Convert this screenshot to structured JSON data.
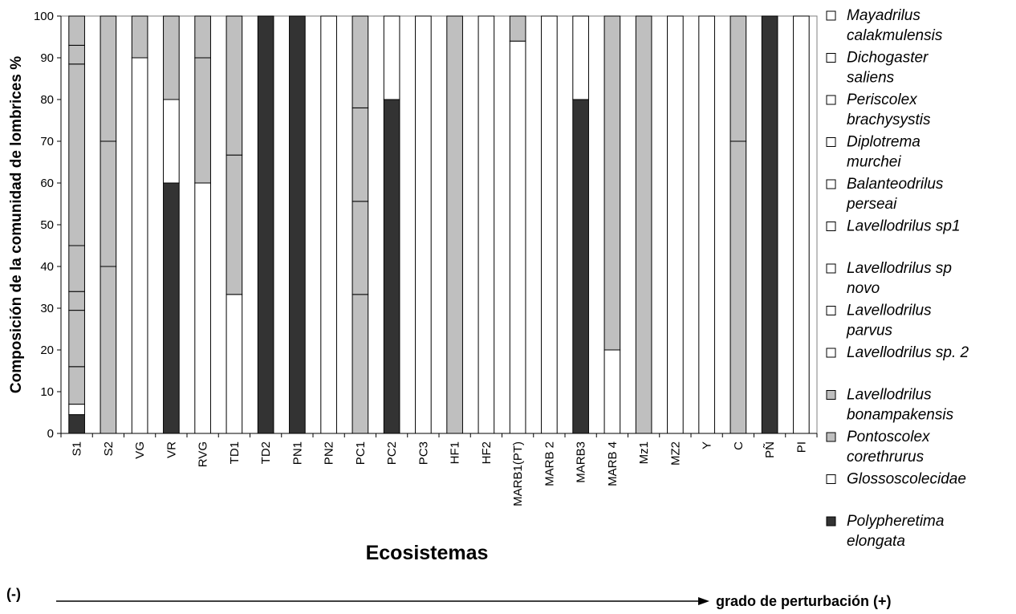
{
  "chart_data": {
    "type": "bar",
    "stacked": true,
    "ylabel": "Composición de la comunidad de lombrices %",
    "xlabel": "Ecosistemas",
    "ylim": [
      0,
      100
    ],
    "yticks": [
      0,
      10,
      20,
      30,
      40,
      50,
      60,
      70,
      80,
      90,
      100
    ],
    "legend_position": "right",
    "categories": [
      "S1",
      "S2",
      "VG",
      "VR",
      "RVG",
      "TD1",
      "TD2",
      "PN1",
      "PN2",
      "PC1",
      "PC2",
      "PC3",
      "HF1",
      "HF2",
      "MARB1(PT)",
      "MARB 2",
      "MARB3",
      "MARB 4",
      "Mz1",
      "MZ2",
      "Y",
      "C",
      "PÑ",
      "PI"
    ],
    "series": [
      {
        "name": "Polypheretima elongata",
        "color": "#333333",
        "values": [
          4.5,
          0,
          0,
          60,
          0,
          0,
          100,
          100,
          0,
          0,
          80,
          0,
          0,
          0,
          0,
          0,
          80,
          0,
          0,
          0,
          0,
          0,
          100,
          0
        ]
      },
      {
        "name": "Glossoscolecidae",
        "color": "#ffffff",
        "values": [
          2.5,
          0,
          90,
          20,
          60,
          33.3,
          0,
          0,
          100,
          0,
          20,
          100,
          0,
          100,
          94,
          100,
          20,
          20,
          0,
          100,
          100,
          0,
          0,
          100
        ]
      },
      {
        "name": "Pontoscolex corethrurus",
        "color": "#bfbfbf",
        "values": [
          9,
          40,
          10,
          20,
          30,
          33.4,
          0,
          0,
          0,
          33.3,
          0,
          0,
          100,
          0,
          6,
          0,
          0,
          80,
          100,
          0,
          0,
          70,
          0,
          0
        ]
      },
      {
        "name": "Lavellodrilus bonampakensis",
        "color": "#bfbfbf",
        "values": [
          13.5,
          30,
          0,
          0,
          10,
          33.3,
          0,
          0,
          0,
          22.3,
          0,
          0,
          0,
          0,
          0,
          0,
          0,
          0,
          0,
          0,
          0,
          30,
          0,
          0
        ]
      },
      {
        "name": "Lavellodrilus sp. 2",
        "color": "#bfbfbf",
        "values": [
          4.5,
          30,
          0,
          0,
          0,
          0,
          0,
          0,
          0,
          22.4,
          0,
          0,
          0,
          0,
          0,
          0,
          0,
          0,
          0,
          0,
          0,
          0,
          0,
          0
        ]
      },
      {
        "name": "Lavellodrilus parvus",
        "color": "#bfbfbf",
        "values": [
          11,
          0,
          0,
          0,
          0,
          0,
          0,
          0,
          0,
          22,
          0,
          0,
          0,
          0,
          0,
          0,
          0,
          0,
          0,
          0,
          0,
          0,
          0,
          0
        ]
      },
      {
        "name": "Lavellodrilus sp novo",
        "color": "#bfbfbf",
        "values": [
          43.5,
          0,
          0,
          0,
          0,
          0,
          0,
          0,
          0,
          0,
          0,
          0,
          0,
          0,
          0,
          0,
          0,
          0,
          0,
          0,
          0,
          0,
          0,
          0
        ]
      },
      {
        "name": "Lavellodrilus sp1",
        "color": "#bfbfbf",
        "values": [
          4.5,
          0,
          0,
          0,
          0,
          0,
          0,
          0,
          0,
          0,
          0,
          0,
          0,
          0,
          0,
          0,
          0,
          0,
          0,
          0,
          0,
          0,
          0,
          0
        ]
      },
      {
        "name": "Balanteodrilus perseai",
        "color": "#bfbfbf",
        "values": [
          7,
          0,
          0,
          0,
          0,
          0,
          0,
          0,
          0,
          0,
          0,
          0,
          0,
          0,
          0,
          0,
          0,
          0,
          0,
          0,
          0,
          0,
          0,
          0
        ]
      },
      {
        "name": "Diplotrema murchei",
        "color": "#ffffff",
        "values": [
          0,
          0,
          0,
          0,
          0,
          0,
          0,
          0,
          0,
          0,
          0,
          0,
          0,
          0,
          0,
          0,
          0,
          0,
          0,
          0,
          0,
          0,
          0,
          0
        ]
      },
      {
        "name": "Periscolex brachysystis",
        "color": "#ffffff",
        "values": [
          0,
          0,
          0,
          0,
          0,
          0,
          0,
          0,
          0,
          0,
          0,
          0,
          0,
          0,
          0,
          0,
          0,
          0,
          0,
          0,
          0,
          0,
          0,
          0
        ]
      },
      {
        "name": "Dichogaster saliens",
        "color": "#ffffff",
        "values": [
          0,
          0,
          0,
          0,
          0,
          0,
          0,
          0,
          0,
          0,
          0,
          0,
          0,
          0,
          0,
          0,
          0,
          0,
          0,
          0,
          0,
          0,
          0,
          0
        ]
      },
      {
        "name": "Mayadrilus calakmulensis",
        "color": "#ffffff",
        "values": [
          0,
          0,
          0,
          0,
          0,
          0,
          0,
          0,
          0,
          0,
          0,
          0,
          0,
          0,
          0,
          0,
          0,
          0,
          0,
          0,
          0,
          0,
          0,
          0
        ]
      }
    ],
    "legend": [
      {
        "line1": "Mayadrilus",
        "line2": "calakmulensis",
        "color": "#ffffff"
      },
      {
        "line1": "Dichogaster",
        "line2": "saliens",
        "color": "#ffffff"
      },
      {
        "line1": "Periscolex",
        "line2": "brachysystis",
        "color": "#ffffff"
      },
      {
        "line1": "Diplotrema",
        "line2": "murchei",
        "color": "#ffffff"
      },
      {
        "line1": "Balanteodrilus",
        "line2": "perseai",
        "color": "#ffffff"
      },
      {
        "line1": "Lavellodrilus sp1",
        "line2": "",
        "color": "#ffffff"
      },
      {
        "line1": "Lavellodrilus sp",
        "line2": "novo",
        "color": "#ffffff"
      },
      {
        "line1": "Lavellodrilus",
        "line2": "parvus",
        "color": "#ffffff"
      },
      {
        "line1": "Lavellodrilus sp. 2",
        "line2": "",
        "color": "#ffffff"
      },
      {
        "line1": "Lavellodrilus",
        "line2": "bonampakensis",
        "color": "#bfbfbf"
      },
      {
        "line1": "Pontoscolex",
        "line2": "corethrurus",
        "color": "#bfbfbf"
      },
      {
        "line1": "Glossoscolecidae",
        "line2": "",
        "color": "#ffffff"
      },
      {
        "line1": "Polypheretima",
        "line2": "elongata",
        "color": "#333333"
      }
    ]
  },
  "arrow": {
    "left_label": "(-)",
    "right_label": "grado de perturbación (+)"
  }
}
